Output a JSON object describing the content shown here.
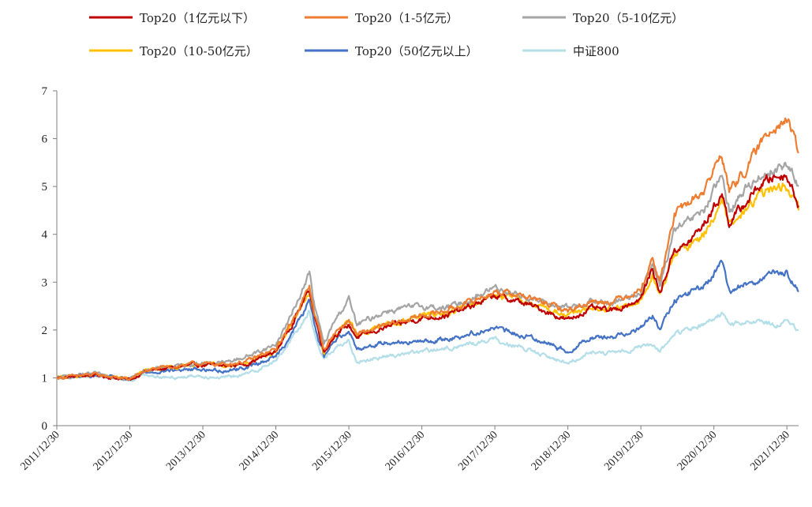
{
  "chart_data": {
    "type": "line",
    "title": "",
    "xlabel": "",
    "ylabel": "",
    "ylim": [
      0,
      7
    ],
    "yticks": [
      0,
      1,
      2,
      3,
      4,
      5,
      6,
      7
    ],
    "x_tick_labels": [
      "2011/12/30",
      "2012/12/30",
      "2013/12/30",
      "2014/12/30",
      "2015/12/30",
      "2016/12/30",
      "2017/12/30",
      "2018/12/30",
      "2019/12/30",
      "2020/12/30",
      "2021/12/30"
    ],
    "x_range_years": [
      2011.99,
      2022.15
    ],
    "grid": false,
    "legend_position": "top",
    "series": [
      {
        "name": "Top20（1亿元以下）",
        "color": "#C00000",
        "points": [
          [
            2011.99,
            1.0
          ],
          [
            2012.5,
            1.06
          ],
          [
            2012.99,
            0.96
          ],
          [
            2013.2,
            1.14
          ],
          [
            2013.5,
            1.2
          ],
          [
            2013.9,
            1.27
          ],
          [
            2014.3,
            1.25
          ],
          [
            2014.6,
            1.3
          ],
          [
            2014.99,
            1.55
          ],
          [
            2015.2,
            2.1
          ],
          [
            2015.45,
            2.85
          ],
          [
            2015.52,
            2.3
          ],
          [
            2015.65,
            1.55
          ],
          [
            2015.8,
            1.9
          ],
          [
            2015.99,
            2.1
          ],
          [
            2016.1,
            1.85
          ],
          [
            2016.5,
            2.05
          ],
          [
            2016.99,
            2.25
          ],
          [
            2017.3,
            2.3
          ],
          [
            2017.6,
            2.45
          ],
          [
            2017.99,
            2.72
          ],
          [
            2018.3,
            2.6
          ],
          [
            2018.6,
            2.45
          ],
          [
            2018.99,
            2.2
          ],
          [
            2019.3,
            2.45
          ],
          [
            2019.6,
            2.4
          ],
          [
            2019.99,
            2.65
          ],
          [
            2020.15,
            3.3
          ],
          [
            2020.25,
            2.75
          ],
          [
            2020.45,
            3.7
          ],
          [
            2020.6,
            3.75
          ],
          [
            2020.85,
            4.2
          ],
          [
            2021.1,
            4.85
          ],
          [
            2021.2,
            4.25
          ],
          [
            2021.4,
            4.6
          ],
          [
            2021.6,
            5.0
          ],
          [
            2021.8,
            5.2
          ],
          [
            2021.99,
            5.25
          ],
          [
            2022.15,
            4.6
          ]
        ]
      },
      {
        "name": "Top20（1-5亿元）",
        "color": "#ED7D31",
        "points": [
          [
            2011.99,
            1.0
          ],
          [
            2012.5,
            1.07
          ],
          [
            2012.99,
            0.97
          ],
          [
            2013.2,
            1.15
          ],
          [
            2013.5,
            1.22
          ],
          [
            2013.9,
            1.3
          ],
          [
            2014.3,
            1.28
          ],
          [
            2014.6,
            1.35
          ],
          [
            2014.99,
            1.6
          ],
          [
            2015.2,
            2.15
          ],
          [
            2015.45,
            2.9
          ],
          [
            2015.52,
            2.35
          ],
          [
            2015.65,
            1.6
          ],
          [
            2015.8,
            1.95
          ],
          [
            2015.99,
            2.2
          ],
          [
            2016.1,
            1.9
          ],
          [
            2016.5,
            2.1
          ],
          [
            2016.99,
            2.3
          ],
          [
            2017.3,
            2.4
          ],
          [
            2017.6,
            2.55
          ],
          [
            2017.99,
            2.8
          ],
          [
            2018.3,
            2.75
          ],
          [
            2018.6,
            2.6
          ],
          [
            2018.99,
            2.4
          ],
          [
            2019.3,
            2.6
          ],
          [
            2019.6,
            2.6
          ],
          [
            2019.99,
            2.85
          ],
          [
            2020.15,
            3.5
          ],
          [
            2020.25,
            3.0
          ],
          [
            2020.45,
            4.4
          ],
          [
            2020.6,
            4.6
          ],
          [
            2020.85,
            4.9
          ],
          [
            2021.1,
            5.7
          ],
          [
            2021.2,
            4.9
          ],
          [
            2021.4,
            5.3
          ],
          [
            2021.6,
            5.8
          ],
          [
            2021.8,
            6.3
          ],
          [
            2021.99,
            6.4
          ],
          [
            2022.15,
            5.7
          ]
        ]
      },
      {
        "name": "Top20（5-10亿元）",
        "color": "#A5A5A5",
        "points": [
          [
            2011.99,
            1.0
          ],
          [
            2012.5,
            1.08
          ],
          [
            2012.99,
            0.98
          ],
          [
            2013.2,
            1.16
          ],
          [
            2013.5,
            1.22
          ],
          [
            2013.9,
            1.3
          ],
          [
            2014.3,
            1.32
          ],
          [
            2014.6,
            1.45
          ],
          [
            2014.99,
            1.7
          ],
          [
            2015.2,
            2.3
          ],
          [
            2015.45,
            3.2
          ],
          [
            2015.52,
            2.5
          ],
          [
            2015.65,
            1.7
          ],
          [
            2015.8,
            2.2
          ],
          [
            2015.99,
            2.65
          ],
          [
            2016.1,
            2.1
          ],
          [
            2016.5,
            2.4
          ],
          [
            2016.99,
            2.5
          ],
          [
            2017.3,
            2.45
          ],
          [
            2017.6,
            2.6
          ],
          [
            2017.99,
            2.9
          ],
          [
            2018.3,
            2.75
          ],
          [
            2018.6,
            2.6
          ],
          [
            2018.99,
            2.45
          ],
          [
            2019.3,
            2.6
          ],
          [
            2019.6,
            2.55
          ],
          [
            2019.99,
            2.8
          ],
          [
            2020.15,
            3.35
          ],
          [
            2020.25,
            2.9
          ],
          [
            2020.45,
            4.1
          ],
          [
            2020.6,
            4.2
          ],
          [
            2020.85,
            4.5
          ],
          [
            2021.1,
            5.2
          ],
          [
            2021.2,
            4.5
          ],
          [
            2021.4,
            4.9
          ],
          [
            2021.6,
            5.2
          ],
          [
            2021.8,
            5.35
          ],
          [
            2021.99,
            5.45
          ],
          [
            2022.15,
            5.0
          ]
        ]
      },
      {
        "name": "Top20（10-50亿元）",
        "color": "#FFC000",
        "points": [
          [
            2011.99,
            1.0
          ],
          [
            2012.5,
            1.06
          ],
          [
            2012.99,
            0.97
          ],
          [
            2013.2,
            1.15
          ],
          [
            2013.5,
            1.21
          ],
          [
            2013.9,
            1.28
          ],
          [
            2014.3,
            1.26
          ],
          [
            2014.6,
            1.32
          ],
          [
            2014.99,
            1.55
          ],
          [
            2015.2,
            2.1
          ],
          [
            2015.45,
            2.8
          ],
          [
            2015.52,
            2.3
          ],
          [
            2015.65,
            1.5
          ],
          [
            2015.8,
            1.9
          ],
          [
            2015.99,
            2.2
          ],
          [
            2016.1,
            1.9
          ],
          [
            2016.5,
            2.1
          ],
          [
            2016.99,
            2.3
          ],
          [
            2017.3,
            2.35
          ],
          [
            2017.6,
            2.5
          ],
          [
            2017.99,
            2.75
          ],
          [
            2018.3,
            2.65
          ],
          [
            2018.6,
            2.5
          ],
          [
            2018.99,
            2.3
          ],
          [
            2019.3,
            2.45
          ],
          [
            2019.6,
            2.4
          ],
          [
            2019.99,
            2.6
          ],
          [
            2020.15,
            3.15
          ],
          [
            2020.25,
            2.7
          ],
          [
            2020.45,
            3.6
          ],
          [
            2020.6,
            3.7
          ],
          [
            2020.85,
            4.0
          ],
          [
            2021.1,
            4.7
          ],
          [
            2021.2,
            4.15
          ],
          [
            2021.4,
            4.45
          ],
          [
            2021.6,
            4.8
          ],
          [
            2021.8,
            4.95
          ],
          [
            2021.99,
            5.0
          ],
          [
            2022.15,
            4.5
          ]
        ]
      },
      {
        "name": "Top20（50亿元以上）",
        "color": "#4472C4",
        "points": [
          [
            2011.99,
            1.0
          ],
          [
            2012.5,
            1.05
          ],
          [
            2012.99,
            0.96
          ],
          [
            2013.2,
            1.12
          ],
          [
            2013.5,
            1.15
          ],
          [
            2013.9,
            1.18
          ],
          [
            2014.3,
            1.15
          ],
          [
            2014.6,
            1.22
          ],
          [
            2014.99,
            1.45
          ],
          [
            2015.2,
            1.9
          ],
          [
            2015.45,
            2.6
          ],
          [
            2015.52,
            2.1
          ],
          [
            2015.65,
            1.45
          ],
          [
            2015.8,
            1.8
          ],
          [
            2015.99,
            2.0
          ],
          [
            2016.1,
            1.6
          ],
          [
            2016.5,
            1.75
          ],
          [
            2016.99,
            1.75
          ],
          [
            2017.3,
            1.8
          ],
          [
            2017.6,
            1.9
          ],
          [
            2017.99,
            2.05
          ],
          [
            2018.3,
            1.9
          ],
          [
            2018.6,
            1.8
          ],
          [
            2018.99,
            1.55
          ],
          [
            2019.3,
            1.85
          ],
          [
            2019.6,
            1.85
          ],
          [
            2019.99,
            2.05
          ],
          [
            2020.15,
            2.3
          ],
          [
            2020.25,
            2.0
          ],
          [
            2020.45,
            2.6
          ],
          [
            2020.6,
            2.75
          ],
          [
            2020.85,
            2.9
          ],
          [
            2021.1,
            3.4
          ],
          [
            2021.2,
            2.8
          ],
          [
            2021.4,
            2.95
          ],
          [
            2021.6,
            3.05
          ],
          [
            2021.8,
            3.15
          ],
          [
            2021.99,
            3.2
          ],
          [
            2022.15,
            2.8
          ]
        ]
      },
      {
        "name": "中证800",
        "color": "#B4DEE8",
        "points": [
          [
            2011.99,
            1.0
          ],
          [
            2012.5,
            1.05
          ],
          [
            2012.99,
            0.95
          ],
          [
            2013.2,
            1.08
          ],
          [
            2013.5,
            1.0
          ],
          [
            2013.9,
            1.05
          ],
          [
            2014.3,
            1.0
          ],
          [
            2014.6,
            1.08
          ],
          [
            2014.99,
            1.35
          ],
          [
            2015.2,
            1.8
          ],
          [
            2015.45,
            2.4
          ],
          [
            2015.52,
            1.9
          ],
          [
            2015.65,
            1.4
          ],
          [
            2015.8,
            1.6
          ],
          [
            2015.99,
            1.75
          ],
          [
            2016.1,
            1.35
          ],
          [
            2016.5,
            1.45
          ],
          [
            2016.99,
            1.55
          ],
          [
            2017.3,
            1.6
          ],
          [
            2017.6,
            1.7
          ],
          [
            2017.99,
            1.8
          ],
          [
            2018.3,
            1.65
          ],
          [
            2018.6,
            1.5
          ],
          [
            2018.99,
            1.3
          ],
          [
            2019.3,
            1.55
          ],
          [
            2019.6,
            1.5
          ],
          [
            2019.99,
            1.65
          ],
          [
            2020.15,
            1.7
          ],
          [
            2020.25,
            1.55
          ],
          [
            2020.45,
            1.9
          ],
          [
            2020.6,
            2.0
          ],
          [
            2020.85,
            2.1
          ],
          [
            2021.1,
            2.35
          ],
          [
            2021.2,
            2.1
          ],
          [
            2021.4,
            2.15
          ],
          [
            2021.6,
            2.2
          ],
          [
            2021.8,
            2.1
          ],
          [
            2021.99,
            2.15
          ],
          [
            2022.15,
            2.0
          ]
        ]
      }
    ]
  }
}
